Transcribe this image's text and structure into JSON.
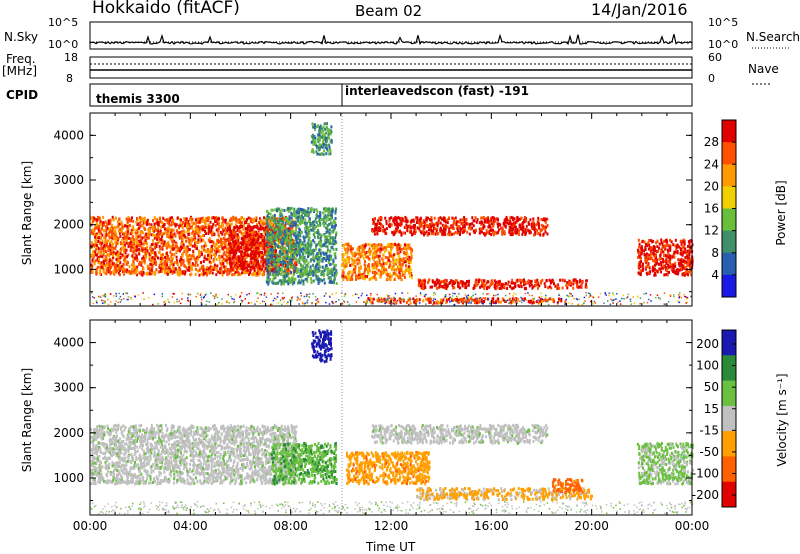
{
  "header": {
    "title": "Hokkaido (fitACF)",
    "beam": "Beam 02",
    "date": "14/Jan/2016"
  },
  "noise_panel": {
    "left_label": "N.Sky",
    "left_ticks": [
      "10^5",
      "10^0"
    ],
    "right_label": "N.Search",
    "right_ticks": [
      "10^5",
      "10^0"
    ]
  },
  "freq_panel": {
    "left_label_1": "Freq.",
    "left_label_2": "[MHz]",
    "left_ticks": [
      "18",
      "8"
    ],
    "right_label": "Nave",
    "right_ticks": [
      "60",
      "0"
    ]
  },
  "cpid_panel": {
    "label": "CPID",
    "mode_1": "themis 3300",
    "mode_2": "interleavedscon (fast) -191"
  },
  "chart_data": [
    {
      "type": "heatmap",
      "quantity": "Power",
      "colorbar_label": "Power [dB]",
      "colorbar_ticks": [
        "28",
        "24",
        "20",
        "16",
        "12",
        "8",
        "4"
      ],
      "colorbar_range": [
        0,
        30
      ],
      "ylabel": "Slant Range [km]",
      "y_ticks": [
        "4000",
        "3000",
        "2000",
        "1000"
      ],
      "ylim": [
        180,
        4500
      ],
      "xlim_hours": [
        0,
        24
      ],
      "echo_regions": [
        {
          "t_start": 0.0,
          "t_end": 8.2,
          "r_low": 900,
          "r_high": 2200,
          "level": 24
        },
        {
          "t_start": 5.5,
          "t_end": 7.4,
          "r_low": 1000,
          "r_high": 2000,
          "level": 29
        },
        {
          "t_start": 7.0,
          "t_end": 9.8,
          "r_low": 700,
          "r_high": 2400,
          "level": 10
        },
        {
          "t_start": 10.0,
          "t_end": 12.8,
          "r_low": 800,
          "r_high": 1600,
          "level": 22
        },
        {
          "t_start": 11.2,
          "t_end": 18.2,
          "r_low": 1800,
          "r_high": 2200,
          "level": 28
        },
        {
          "t_start": 13.0,
          "t_end": 19.8,
          "r_low": 600,
          "r_high": 800,
          "level": 28
        },
        {
          "t_start": 11.0,
          "t_end": 19.0,
          "r_low": 280,
          "r_high": 380,
          "level": 26
        },
        {
          "t_start": 21.8,
          "t_end": 24.0,
          "r_low": 900,
          "r_high": 1700,
          "level": 28
        },
        {
          "t_start": 8.8,
          "t_end": 9.6,
          "r_low": 3600,
          "r_high": 4300,
          "level": 10
        }
      ]
    },
    {
      "type": "heatmap",
      "quantity": "Velocity",
      "colorbar_label": "Velocity [m s⁻¹]",
      "colorbar_ticks": [
        "200",
        "100",
        "50",
        "15",
        "-15",
        "-50",
        "-100",
        "-200"
      ],
      "colorbar_range": [
        -250,
        250
      ],
      "ylabel": "Slant Range [km]",
      "y_ticks": [
        "4000",
        "3000",
        "2000",
        "1000"
      ],
      "ylim": [
        180,
        4500
      ],
      "xlim_hours": [
        0,
        24
      ],
      "echo_regions": [
        {
          "t_start": 0.0,
          "t_end": 8.2,
          "r_low": 900,
          "r_high": 2200,
          "velocity": 0
        },
        {
          "t_start": 7.2,
          "t_end": 9.8,
          "r_low": 900,
          "r_high": 1800,
          "velocity": 40
        },
        {
          "t_start": 10.2,
          "t_end": 13.5,
          "r_low": 900,
          "r_high": 1600,
          "velocity": -60
        },
        {
          "t_start": 11.2,
          "t_end": 18.2,
          "r_low": 1800,
          "r_high": 2200,
          "velocity": 0
        },
        {
          "t_start": 13.0,
          "t_end": 20.0,
          "r_low": 550,
          "r_high": 800,
          "velocity": -40
        },
        {
          "t_start": 18.4,
          "t_end": 19.6,
          "r_low": 700,
          "r_high": 1000,
          "velocity": -90
        },
        {
          "t_start": 21.8,
          "t_end": 24.0,
          "r_low": 900,
          "r_high": 1800,
          "velocity": 20
        },
        {
          "t_start": 8.8,
          "t_end": 9.6,
          "r_low": 3600,
          "r_high": 4300,
          "velocity": 150
        }
      ]
    }
  ],
  "x_axis": {
    "ticks": [
      "00:00",
      "04:00",
      "08:00",
      "12:00",
      "16:00",
      "20:00",
      "00:00"
    ],
    "label": "Time UT"
  },
  "colors": {
    "power_scale": [
      "#1919e6",
      "#2a5fb0",
      "#3f8f6a",
      "#6abf3a",
      "#f0d000",
      "#ff9a00",
      "#ff5000",
      "#e00000"
    ],
    "velocity_scale": [
      "#e00000",
      "#ff6000",
      "#ffa000",
      "#c0c0c0",
      "#6ac040",
      "#2a8a3a",
      "#1a1ab0"
    ]
  }
}
